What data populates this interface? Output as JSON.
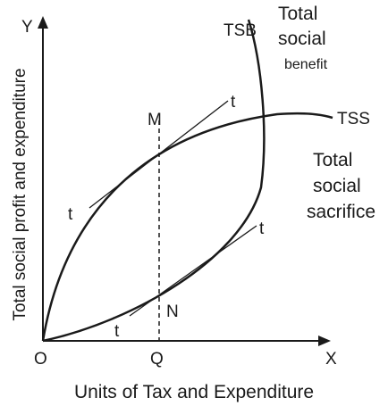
{
  "axes": {
    "y": "Y",
    "x": "X",
    "origin": "O",
    "y_label": "Total social profit and expenditure",
    "x_label": "Units of Tax and Expenditure"
  },
  "points": {
    "m": "M",
    "n": "N",
    "q": "Q"
  },
  "curves": {
    "tsb": {
      "name": "TSB",
      "label": [
        "Total",
        "social",
        "benefit"
      ]
    },
    "tss": {
      "name": "TSS",
      "label": [
        "Total",
        "social",
        "sacrifice"
      ]
    }
  },
  "tangents": {
    "upper": [
      "t",
      "t"
    ],
    "lower": [
      "t",
      "t"
    ]
  }
}
